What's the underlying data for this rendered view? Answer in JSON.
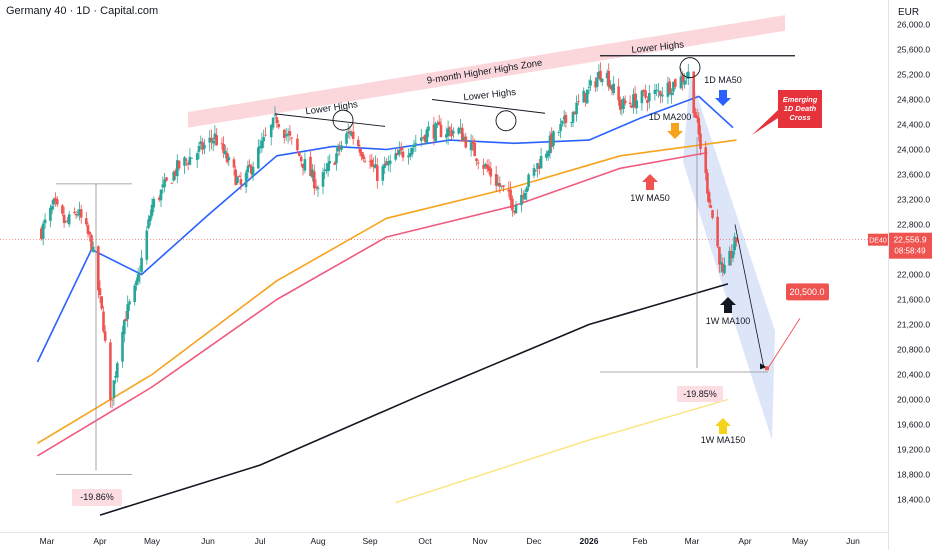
{
  "header": {
    "title": "Germany 40 · 1D · Capital.com",
    "currency": "EUR"
  },
  "colors": {
    "up": "#26a69a",
    "down": "#ef5350",
    "ma50_1d": "#2962ff",
    "ma200_1d": "#f7a21b",
    "ma50_1w": "#f05a7e",
    "ma100_1w": "#131722",
    "ma150_1w": "#fbe57d",
    "zone": "#f9c9d0",
    "channel": "#c7d3f5"
  },
  "chart_data": {
    "type": "candlestick",
    "title": "Germany 40 · 1D · Capital.com",
    "unit": "EUR",
    "y_ticks": [
      "26,000.0",
      "25,600.0",
      "25,200.0",
      "24,800.0",
      "24,400.0",
      "24,000.0",
      "23,600.0",
      "23,200.0",
      "22,800.0",
      "22,400.0",
      "22,000.0",
      "21,600.0",
      "21,200.0",
      "20,800.0",
      "20,400.0",
      "20,000.0",
      "19,600.0",
      "19,200.0",
      "18,800.0",
      "18,400.0"
    ],
    "x_ticks": [
      "Mar",
      "Apr",
      "May",
      "Jun",
      "Jul",
      "Aug",
      "Sep",
      "Oct",
      "Nov",
      "Dec",
      "2026",
      "Feb",
      "Mar",
      "Apr",
      "May",
      "Jun"
    ],
    "ylim": [
      18100,
      26300
    ],
    "last_price": {
      "symbol": "DE40",
      "value": "22,556.9",
      "countdown": "08:58:49",
      "numeric": 22556.9
    },
    "target_price": {
      "label": "20,500.0",
      "value": 20500
    },
    "key_prices": {
      "support_2025_start": 23450,
      "support_2025_low": 18800,
      "support_2026_level": 20440,
      "highs_line_from": 25500,
      "highs_line_to": 25500
    },
    "candles_approx": [
      {
        "date": "2025-02-26",
        "close": 22700
      },
      {
        "date": "2025-03-05",
        "close": 23100
      },
      {
        "date": "2025-03-12",
        "close": 22800
      },
      {
        "date": "2025-03-19",
        "close": 23000
      },
      {
        "date": "2025-03-27",
        "close": 22500
      },
      {
        "date": "2025-04-03",
        "close": 21200
      },
      {
        "date": "2025-04-07",
        "close": 19900
      },
      {
        "date": "2025-04-14",
        "close": 21200
      },
      {
        "date": "2025-04-22",
        "close": 21800
      },
      {
        "date": "2025-05-01",
        "close": 23100
      },
      {
        "date": "2025-05-15",
        "close": 23700
      },
      {
        "date": "2025-06-05",
        "close": 24200
      },
      {
        "date": "2025-06-20",
        "close": 23400
      },
      {
        "date": "2025-07-10",
        "close": 24500
      },
      {
        "date": "2025-08-01",
        "close": 23400
      },
      {
        "date": "2025-08-20",
        "close": 24300
      },
      {
        "date": "2025-09-05",
        "close": 23600
      },
      {
        "date": "2025-10-03",
        "close": 24300
      },
      {
        "date": "2025-10-20",
        "close": 24300
      },
      {
        "date": "2025-11-20",
        "close": 23100
      },
      {
        "date": "2025-12-10",
        "close": 24100
      },
      {
        "date": "2026-01-10",
        "close": 25300
      },
      {
        "date": "2026-01-20",
        "close": 24700
      },
      {
        "date": "2026-02-10",
        "close": 24900
      },
      {
        "date": "2026-02-27",
        "close": 25200
      },
      {
        "date": "2026-03-10",
        "close": 23400
      },
      {
        "date": "2026-03-19",
        "close": 21950
      },
      {
        "date": "2026-03-27",
        "close": 22556.9
      }
    ],
    "series": [
      {
        "name": "1D MA50",
        "color_key": "ma50_1d",
        "points": [
          {
            "date": "2025-02-24",
            "value": 20600
          },
          {
            "date": "2025-03-27",
            "value": 22400
          },
          {
            "date": "2025-04-25",
            "value": 22000
          },
          {
            "date": "2025-06-01",
            "value": 22950
          },
          {
            "date": "2025-07-10",
            "value": 23900
          },
          {
            "date": "2025-08-10",
            "value": 24050
          },
          {
            "date": "2025-09-10",
            "value": 24000
          },
          {
            "date": "2025-10-15",
            "value": 24150
          },
          {
            "date": "2025-11-20",
            "value": 24100
          },
          {
            "date": "2026-01-01",
            "value": 24150
          },
          {
            "date": "2026-02-01",
            "value": 24500
          },
          {
            "date": "2026-03-05",
            "value": 24850
          },
          {
            "date": "2026-03-25",
            "value": 24350
          }
        ]
      },
      {
        "name": "1D MA200",
        "color_key": "ma200_1d",
        "points": [
          {
            "date": "2025-02-24",
            "value": 19300
          },
          {
            "date": "2025-05-01",
            "value": 20400
          },
          {
            "date": "2025-07-10",
            "value": 21900
          },
          {
            "date": "2025-09-10",
            "value": 22900
          },
          {
            "date": "2025-11-20",
            "value": 23400
          },
          {
            "date": "2026-01-20",
            "value": 23900
          },
          {
            "date": "2026-03-27",
            "value": 24150
          }
        ]
      },
      {
        "name": "1W MA50",
        "color_key": "ma50_1w",
        "points": [
          {
            "date": "2025-02-24",
            "value": 19100
          },
          {
            "date": "2025-05-01",
            "value": 20200
          },
          {
            "date": "2025-07-10",
            "value": 21600
          },
          {
            "date": "2025-09-10",
            "value": 22600
          },
          {
            "date": "2025-11-20",
            "value": 23100
          },
          {
            "date": "2026-01-20",
            "value": 23700
          },
          {
            "date": "2026-03-10",
            "value": 23950
          }
        ]
      },
      {
        "name": "1W MA100",
        "color_key": "ma100_1w",
        "points": [
          {
            "date": "2025-04-01",
            "value": 18150
          },
          {
            "date": "2025-07-01",
            "value": 18950
          },
          {
            "date": "2025-10-01",
            "value": 20100
          },
          {
            "date": "2026-01-01",
            "value": 21200
          },
          {
            "date": "2026-03-22",
            "value": 21850
          }
        ]
      },
      {
        "name": "1W MA150",
        "color_key": "ma150_1w",
        "points": [
          {
            "date": "2025-09-15",
            "value": 18350
          },
          {
            "date": "2026-01-01",
            "value": 19350
          },
          {
            "date": "2026-03-22",
            "value": 20000
          }
        ]
      }
    ],
    "annotations": {
      "higher_highs_zone": "9-month Higher Highs Zone",
      "lower_highs": "Lower Highs",
      "ma50_1d": "1D MA50",
      "ma200_1d": "1D MA200",
      "ma50_1w": "1W MA50",
      "ma100_1w": "1W MA100",
      "ma150_1w": "1W MA150",
      "pct_drop_left": "-19.86%",
      "pct_drop_right": "-19.85%",
      "death_cross_lines": [
        "Emerging",
        "1D Death",
        "Cross"
      ]
    },
    "grid": false,
    "legend": "none"
  }
}
